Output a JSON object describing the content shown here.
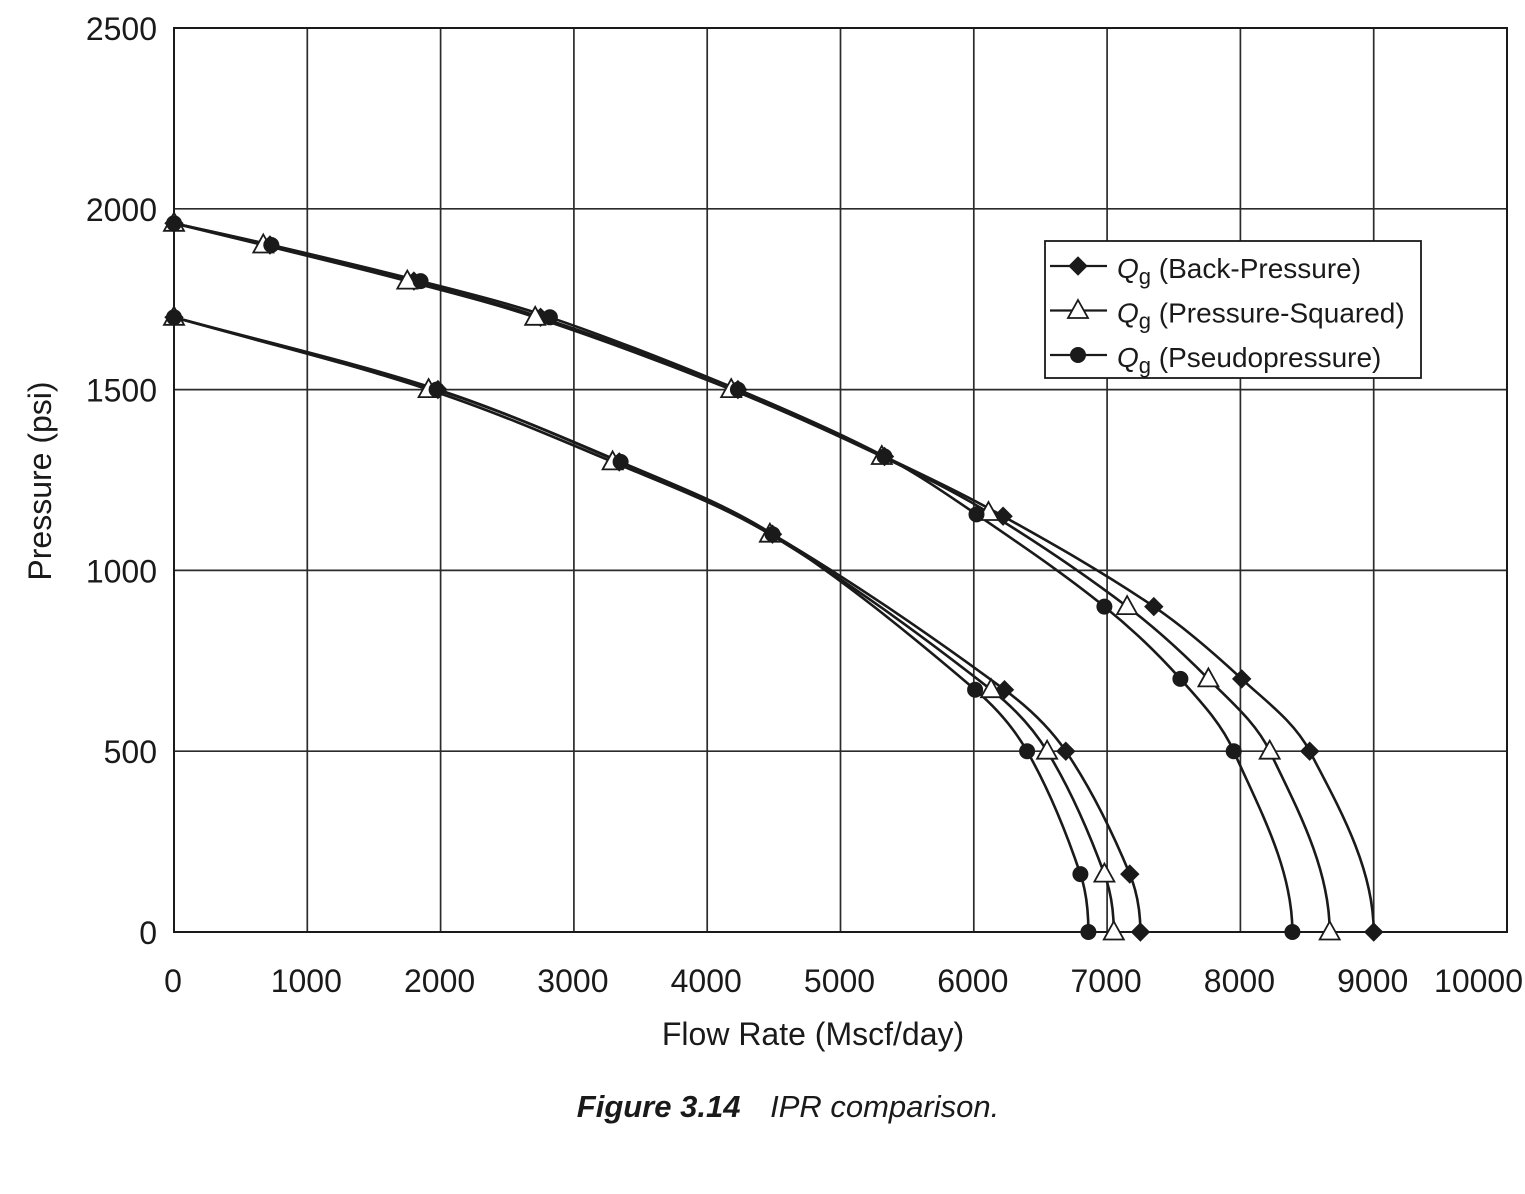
{
  "chart_data": {
    "type": "line",
    "xlabel": "Flow Rate (Mscf/day)",
    "ylabel": "Pressure (psi)",
    "xlim": [
      0,
      10000
    ],
    "ylim": [
      0,
      2500
    ],
    "x_ticks": [
      0,
      1000,
      2000,
      3000,
      4000,
      5000,
      6000,
      7000,
      8000,
      9000,
      10000
    ],
    "y_ticks": [
      0,
      500,
      1000,
      1500,
      2000,
      2500
    ],
    "grid": true,
    "legend_position": "upper right",
    "series": [
      {
        "name": "Qg (Back-Pressure)",
        "marker": "diamond",
        "color": "#1a1a1a",
        "marker_fill": "#1a1a1a",
        "curves": [
          [
            [
              0,
              1960
            ],
            [
              720,
              1900
            ],
            [
              1800,
              1800
            ],
            [
              2750,
              1700
            ],
            [
              4230,
              1500
            ],
            [
              5330,
              1315
            ],
            [
              6220,
              1150
            ],
            [
              7350,
              900
            ],
            [
              8010,
              700
            ],
            [
              8520,
              500
            ],
            [
              9000,
              0
            ]
          ],
          [
            [
              0,
              1700
            ],
            [
              1980,
              1500
            ],
            [
              3340,
              1300
            ],
            [
              4490,
              1100
            ],
            [
              6230,
              670
            ],
            [
              6690,
              500
            ],
            [
              7170,
              160
            ],
            [
              7250,
              0
            ]
          ]
        ]
      },
      {
        "name": "Qg (Pressure-Squared)",
        "marker": "triangle",
        "color": "#1a1a1a",
        "marker_fill": "#ffffff",
        "curves": [
          [
            [
              0,
              1960
            ],
            [
              670,
              1900
            ],
            [
              1750,
              1800
            ],
            [
              2710,
              1700
            ],
            [
              4180,
              1500
            ],
            [
              5310,
              1315
            ],
            [
              6110,
              1160
            ],
            [
              7150,
              900
            ],
            [
              7760,
              700
            ],
            [
              8220,
              500
            ],
            [
              8670,
              0
            ]
          ],
          [
            [
              0,
              1700
            ],
            [
              1910,
              1500
            ],
            [
              3290,
              1300
            ],
            [
              4470,
              1100
            ],
            [
              6130,
              670
            ],
            [
              6550,
              500
            ],
            [
              6980,
              160
            ],
            [
              7050,
              0
            ]
          ]
        ]
      },
      {
        "name": "Qg (Pseudopressure)",
        "marker": "circle",
        "color": "#1a1a1a",
        "marker_fill": "#1a1a1a",
        "curves": [
          [
            [
              0,
              1960
            ],
            [
              730,
              1900
            ],
            [
              1850,
              1800
            ],
            [
              2820,
              1700
            ],
            [
              4230,
              1500
            ],
            [
              5330,
              1315
            ],
            [
              6020,
              1155
            ],
            [
              6980,
              900
            ],
            [
              7550,
              700
            ],
            [
              7950,
              500
            ],
            [
              8390,
              0
            ]
          ],
          [
            [
              0,
              1700
            ],
            [
              1970,
              1500
            ],
            [
              3350,
              1300
            ],
            [
              4490,
              1100
            ],
            [
              6010,
              670
            ],
            [
              6400,
              500
            ],
            [
              6800,
              160
            ],
            [
              6860,
              0
            ]
          ]
        ]
      }
    ]
  },
  "caption": {
    "label": "Figure 3.14",
    "text": "IPR comparison."
  }
}
